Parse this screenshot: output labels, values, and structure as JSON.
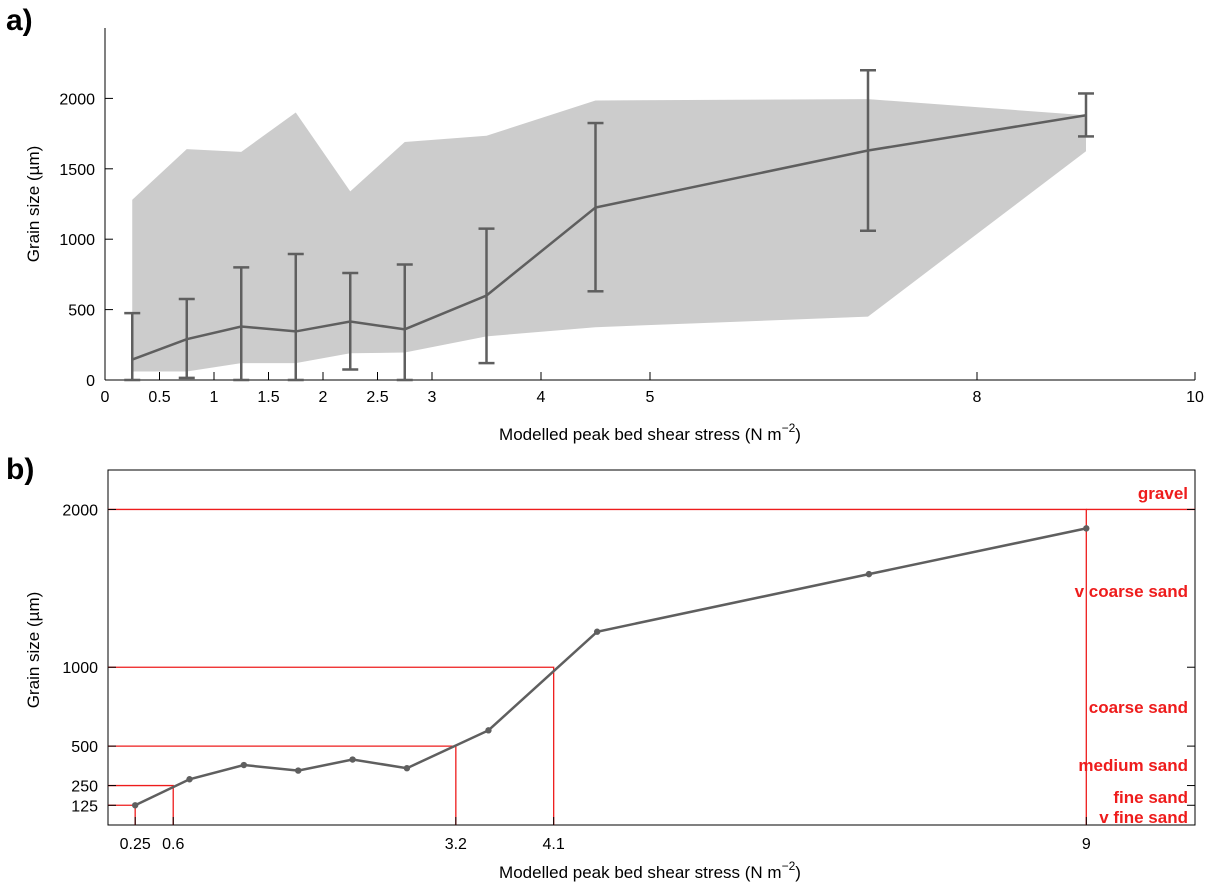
{
  "chart_data": [
    {
      "panel": "a)",
      "type": "line",
      "xlabel": "Modelled peak bed shear stress (N m",
      "xlabel_sup": "−2",
      "xlabel_close": ")",
      "ylabel": "Grain size (µm)",
      "xlim": [
        0,
        10
      ],
      "ylim": [
        0,
        2500
      ],
      "x_ticks": [
        0,
        0.5,
        1,
        1.5,
        2,
        2.5,
        3,
        4,
        5,
        8,
        10
      ],
      "x_tick_labels": [
        "0",
        "0.5",
        "1",
        "1.5",
        "2",
        "2.5",
        "3",
        "4",
        "5",
        "8",
        "10"
      ],
      "y_ticks": [
        0,
        500,
        1000,
        1500,
        2000
      ],
      "y_tick_labels": [
        "0",
        "500",
        "1000",
        "1500",
        "2000"
      ],
      "grid": false,
      "series": [
        {
          "x": [
            0.25,
            0.75,
            1.25,
            1.75,
            2.25,
            2.75,
            3.5,
            4.5,
            7,
            9
          ],
          "mean": [
            145,
            290,
            380,
            345,
            415,
            360,
            600,
            1225,
            1630,
            1880
          ],
          "err_low": [
            0,
            15,
            0,
            0,
            75,
            0,
            120,
            630,
            1060,
            1730
          ],
          "err_high": [
            475,
            575,
            800,
            895,
            760,
            820,
            1075,
            1825,
            2200,
            2035
          ],
          "range_min": [
            60,
            60,
            120,
            120,
            190,
            195,
            310,
            375,
            450,
            1625
          ],
          "range_max": [
            1280,
            1640,
            1620,
            1900,
            1340,
            1690,
            1735,
            1985,
            1995,
            1880
          ]
        }
      ],
      "colors": {
        "line": "#5f5f5f",
        "band": "#cccccc"
      }
    },
    {
      "panel": "b)",
      "type": "line",
      "xlabel": "Modelled peak bed shear stress (N m",
      "xlabel_sup": "−2",
      "xlabel_close": ")",
      "ylabel": "Grain size (µm)",
      "xlim": [
        0,
        10
      ],
      "ylim": [
        0,
        2250
      ],
      "x_ticks": [
        0.25,
        0.6,
        3.2,
        4.1,
        9
      ],
      "x_tick_labels": [
        "0.25",
        "0.6",
        "3.2",
        "4.1",
        "9"
      ],
      "y_ticks": [
        125,
        250,
        500,
        1000,
        2000
      ],
      "y_tick_labels": [
        "125",
        "250",
        "500",
        "1000",
        "2000"
      ],
      "grid": false,
      "series": [
        {
          "x": [
            0.25,
            0.75,
            1.25,
            1.75,
            2.25,
            2.75,
            3.5,
            4.5,
            7,
            9
          ],
          "y": [
            125,
            290,
            380,
            345,
            415,
            360,
            600,
            1225,
            1590,
            1880
          ]
        }
      ],
      "thresholds": [
        {
          "x": 0.25,
          "y": 125
        },
        {
          "x": 0.6,
          "y": 250
        },
        {
          "x": 3.2,
          "y": 500
        },
        {
          "x": 4.1,
          "y": 1000
        },
        {
          "x": 9,
          "y": 2000
        }
      ],
      "class_labels": [
        "gravel",
        "v coarse sand",
        "coarse sand",
        "medium sand",
        "fine sand",
        "v fine sand"
      ],
      "colors": {
        "line": "#5f5f5f",
        "threshold": "#ee1c1c"
      }
    }
  ]
}
